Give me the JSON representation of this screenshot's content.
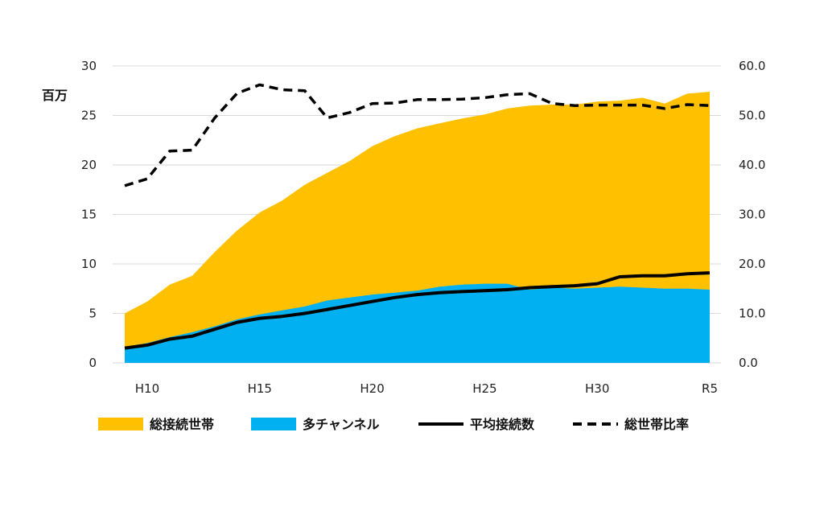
{
  "chart_data": {
    "type": "area",
    "unit_left": "百万",
    "x": [
      "H9",
      "H10",
      "H11",
      "H12",
      "H13",
      "H14",
      "H15",
      "H16",
      "H17",
      "H18",
      "H19",
      "H20",
      "H21",
      "H22",
      "H23",
      "H24",
      "H25",
      "H26",
      "H27",
      "H28",
      "H29",
      "H30",
      "R1",
      "R2",
      "R3",
      "R4",
      "R5"
    ],
    "x_tick_labels": [
      "H10",
      "H15",
      "H20",
      "H25",
      "H30",
      "R5"
    ],
    "y_left": {
      "min": 0,
      "max": 30,
      "ticks": [
        "0",
        "5",
        "10",
        "15",
        "20",
        "25",
        "30"
      ]
    },
    "y_right": {
      "min": 0,
      "max": 60,
      "ticks": [
        "0.0",
        "10.0",
        "20.0",
        "30.0",
        "40.0",
        "50.0",
        "60.0"
      ]
    },
    "series": [
      {
        "name": "総接続世帯",
        "type": "area",
        "axis": "left",
        "color": "#FFC000",
        "values": [
          5.0,
          6.2,
          7.9,
          8.8,
          11.2,
          13.4,
          15.2,
          16.4,
          18.0,
          19.2,
          20.4,
          21.9,
          22.9,
          23.7,
          24.2,
          24.7,
          25.1,
          25.7,
          26.0,
          26.1,
          26.1,
          26.4,
          26.5,
          26.8,
          26.2,
          27.2,
          27.4
        ]
      },
      {
        "name": "多チャンネル",
        "type": "area",
        "axis": "left",
        "color": "#00B0F0",
        "values": [
          1.6,
          2.0,
          2.6,
          3.1,
          3.7,
          4.4,
          4.9,
          5.3,
          5.7,
          6.3,
          6.6,
          6.9,
          7.1,
          7.3,
          7.7,
          7.9,
          8.0,
          8.0,
          7.4,
          7.6,
          7.5,
          7.6,
          7.7,
          7.6,
          7.5,
          7.5,
          7.4
        ]
      },
      {
        "name": "平均接続数",
        "type": "line",
        "axis": "left",
        "color": "#000000",
        "values": [
          1.5,
          1.8,
          2.4,
          2.7,
          3.4,
          4.1,
          4.5,
          4.7,
          5.0,
          5.4,
          5.8,
          6.2,
          6.6,
          6.9,
          7.1,
          7.2,
          7.3,
          7.4,
          7.6,
          7.7,
          7.8,
          8.0,
          8.7,
          8.8,
          8.8,
          9.0,
          9.1
        ]
      },
      {
        "name": "総世帯比率",
        "type": "line",
        "axis": "right",
        "dashed": true,
        "color": "#000000",
        "values": [
          35.8,
          37.2,
          42.8,
          43.0,
          49.5,
          54.5,
          56.2,
          55.2,
          55.0,
          49.5,
          50.6,
          52.4,
          52.5,
          53.2,
          53.2,
          53.3,
          53.6,
          54.2,
          54.4,
          52.4,
          52.0,
          52.1,
          52.1,
          52.1,
          51.4,
          52.2,
          52.0
        ]
      }
    ],
    "legend_position": "bottom",
    "grid": {
      "horizontal": true,
      "vertical": false
    }
  }
}
